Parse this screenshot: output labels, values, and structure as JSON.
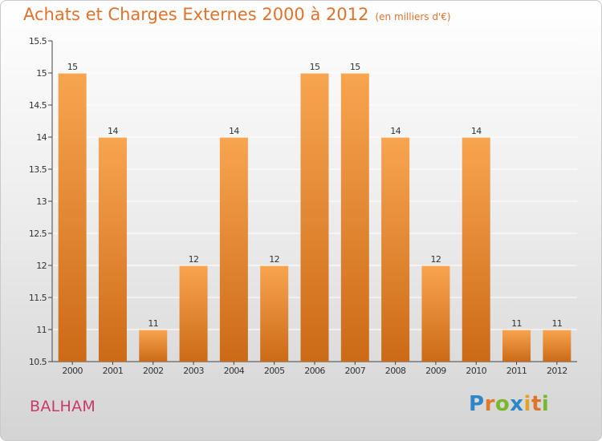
{
  "chart_data": {
    "type": "bar",
    "title": "Achats et Charges Externes 2000 à 2012",
    "unit_label": "(en milliers d'€)",
    "categories": [
      "2000",
      "2001",
      "2002",
      "2003",
      "2004",
      "2005",
      "2006",
      "2007",
      "2008",
      "2009",
      "2010",
      "2011",
      "2012"
    ],
    "values": [
      15,
      14,
      11,
      12,
      14,
      12,
      15,
      15,
      14,
      12,
      14,
      11,
      11
    ],
    "value_labels": [
      "15",
      "14",
      "11",
      "12",
      "14",
      "12",
      "15",
      "15",
      "14",
      "12",
      "14",
      "11",
      "11"
    ],
    "ylim": [
      10.5,
      15.5
    ],
    "yticks": [
      10.5,
      11,
      11.5,
      12,
      12.5,
      13,
      13.5,
      14,
      14.5,
      15,
      15.5
    ],
    "ytick_labels": [
      "10.5",
      "11",
      "11.5",
      "12",
      "12.5",
      "13",
      "13.5",
      "14",
      "14.5",
      "15",
      "15.5"
    ],
    "grid": true,
    "xlabel": "",
    "ylabel": "",
    "colors": {
      "bar_light": "#f8a550",
      "bar_dark": "#cc6a16",
      "text": "#333333",
      "grid": "#ffffff",
      "title": "#e0722c"
    }
  },
  "footer": {
    "commune": "BALHAM",
    "logo_letters": [
      {
        "ch": "P",
        "color": "#2f86c6"
      },
      {
        "ch": "r",
        "color": "#e07a2a"
      },
      {
        "ch": "o",
        "color": "#7ab72c"
      },
      {
        "ch": "x",
        "color": "#2f86c6"
      },
      {
        "ch": "i",
        "color": "#e3a22a"
      },
      {
        "ch": "t",
        "color": "#e0722c"
      },
      {
        "ch": "i",
        "color": "#7ab72c"
      }
    ]
  }
}
